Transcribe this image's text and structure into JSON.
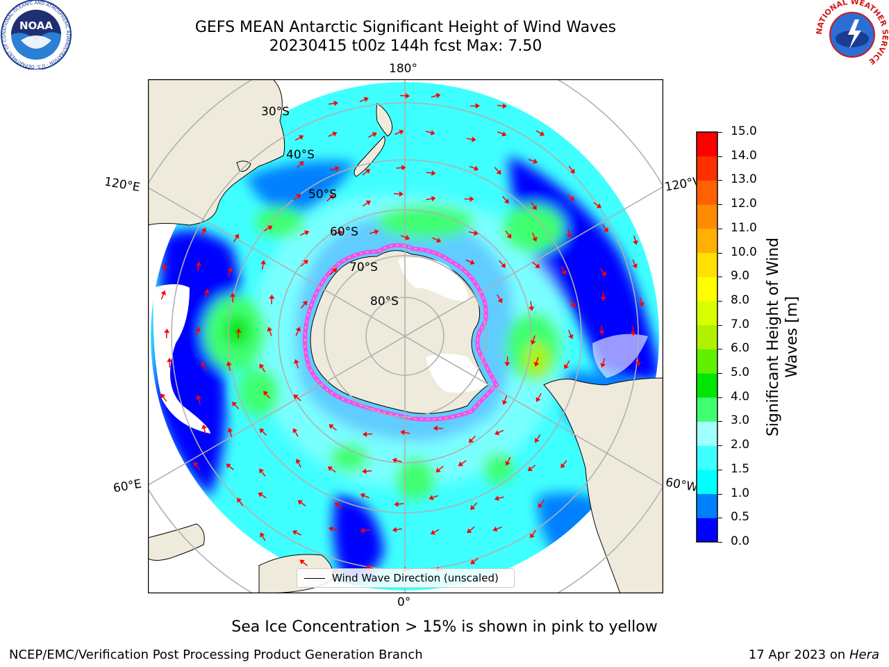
{
  "title_line1": "GEFS MEAN Antarctic Significant Height of Wind Waves",
  "title_line2": "20230415 t00z 144h fcst   Max: 7.50",
  "logos": {
    "noaa_text": "NOAA",
    "noaa_ring_text": "NATIONAL OCEANIC AND ATMOSPHERIC ADMINISTRATION · U.S. DEPARTMENT OF COMMERCE",
    "nws_ring_text": "NATIONAL WEATHER SERVICE"
  },
  "map": {
    "projection": "south-polar-stereographic",
    "lon_labels": [
      "180°",
      "120°E",
      "120°W",
      "60°E",
      "60°W",
      "0°"
    ],
    "lat_labels": [
      "30°S",
      "40°S",
      "50°S",
      "60°S",
      "70°S",
      "80°S"
    ],
    "colors": {
      "land": "#efebdc",
      "ice_shelf": "#ffffff",
      "arrow": "#ff0000",
      "grid": "#b0b0b0"
    }
  },
  "colorbar": {
    "label": "Significant Height of Wind Waves [m]",
    "ticks": [
      "15.0",
      "14.0",
      "13.0",
      "12.0",
      "11.0",
      "10.0",
      "9.0",
      "8.0",
      "7.0",
      "6.0",
      "5.0",
      "4.0",
      "3.0",
      "2.0",
      "1.5",
      "1.0",
      "0.5",
      "0.0"
    ],
    "colors_bottom_to_top": [
      "#0000ff",
      "#0080ff",
      "#00ffff",
      "#40ffff",
      "#a0ffff",
      "#40ff70",
      "#00e600",
      "#60f000",
      "#b0f000",
      "#d8ff00",
      "#ffff00",
      "#ffe000",
      "#ffb000",
      "#ff8c00",
      "#ff6000",
      "#ff3000",
      "#ff0000"
    ]
  },
  "legend": {
    "label": "Wind Wave Direction (unscaled)"
  },
  "note": "Sea Ice Concentration > 15% is shown in pink to yellow",
  "footer": {
    "left": "NCEP/EMC/Verification Post Processing Product Generation Branch",
    "right_date": "17 Apr 2023 on ",
    "right_host": "Hera"
  }
}
